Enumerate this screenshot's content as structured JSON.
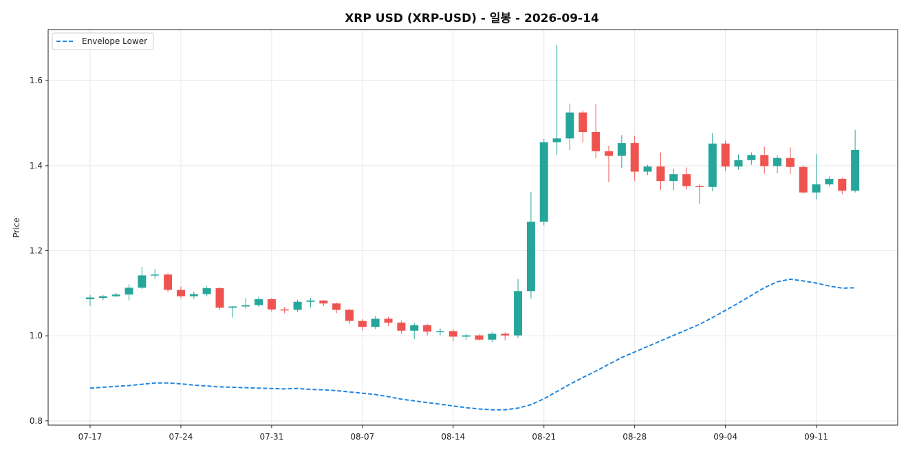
{
  "chart_data": {
    "type": "candlestick",
    "title": "XRP USD (XRP-USD) - 일봉 - 2026-09-14",
    "ylabel": "Price",
    "xlabel": "",
    "ylim": [
      0.79,
      1.72
    ],
    "yticks": [
      0.8,
      1.0,
      1.2,
      1.4,
      1.6
    ],
    "ytick_labels": [
      "0.8",
      "1.0",
      "1.2",
      "1.4",
      "1.6"
    ],
    "xtick_labels": [
      "07-17",
      "07-24",
      "07-31",
      "08-07",
      "08-14",
      "08-21",
      "08-28",
      "09-04",
      "09-11"
    ],
    "xtick_dates": [
      "2026-07-17",
      "2026-07-24",
      "2026-07-31",
      "2026-08-07",
      "2026-08-14",
      "2026-08-21",
      "2026-08-28",
      "2026-09-04",
      "2026-09-11"
    ],
    "dates": [
      "2026-07-17",
      "2026-07-18",
      "2026-07-19",
      "2026-07-20",
      "2026-07-21",
      "2026-07-22",
      "2026-07-23",
      "2026-07-24",
      "2026-07-25",
      "2026-07-26",
      "2026-07-27",
      "2026-07-28",
      "2026-07-29",
      "2026-07-30",
      "2026-07-31",
      "2026-08-01",
      "2026-08-02",
      "2026-08-03",
      "2026-08-04",
      "2026-08-05",
      "2026-08-06",
      "2026-08-07",
      "2026-08-08",
      "2026-08-09",
      "2026-08-10",
      "2026-08-11",
      "2026-08-12",
      "2026-08-13",
      "2026-08-14",
      "2026-08-15",
      "2026-08-16",
      "2026-08-17",
      "2026-08-18",
      "2026-08-19",
      "2026-08-20",
      "2026-08-21",
      "2026-08-22",
      "2026-08-23",
      "2026-08-24",
      "2026-08-25",
      "2026-08-26",
      "2026-08-27",
      "2026-08-28",
      "2026-08-29",
      "2026-08-30",
      "2026-08-31",
      "2026-09-01",
      "2026-09-02",
      "2026-09-03",
      "2026-09-04",
      "2026-09-05",
      "2026-09-06",
      "2026-09-07",
      "2026-09-08",
      "2026-09-09",
      "2026-09-10",
      "2026-09-11",
      "2026-09-12",
      "2026-09-13",
      "2026-09-14"
    ],
    "open": [
      1.086,
      1.089,
      1.093,
      1.097,
      1.113,
      1.142,
      1.144,
      1.108,
      1.093,
      1.098,
      1.112,
      1.066,
      1.069,
      1.072,
      1.086,
      1.062,
      1.061,
      1.08,
      1.083,
      1.076,
      1.061,
      1.035,
      1.021,
      1.04,
      1.031,
      1.012,
      1.025,
      1.01,
      1.011,
      0.998,
      1.001,
      0.991,
      1.005,
      1.001,
      1.105,
      1.268,
      1.455,
      1.464,
      1.525,
      1.479,
      1.434,
      1.423,
      1.453,
      1.386,
      1.398,
      1.364,
      1.38,
      1.352,
      1.35,
      1.452,
      1.398,
      1.413,
      1.425,
      1.399,
      1.418,
      1.397,
      1.337,
      1.356,
      1.369,
      1.341
    ],
    "close": [
      1.09,
      1.093,
      1.097,
      1.113,
      1.142,
      1.144,
      1.108,
      1.093,
      1.098,
      1.112,
      1.066,
      1.069,
      1.072,
      1.086,
      1.062,
      1.061,
      1.08,
      1.083,
      1.076,
      1.061,
      1.035,
      1.021,
      1.04,
      1.031,
      1.012,
      1.025,
      1.01,
      1.011,
      0.998,
      1.001,
      0.991,
      1.005,
      1.001,
      1.105,
      1.268,
      1.455,
      1.464,
      1.525,
      1.479,
      1.434,
      1.423,
      1.453,
      1.386,
      1.398,
      1.364,
      1.38,
      1.352,
      1.35,
      1.452,
      1.398,
      1.413,
      1.425,
      1.399,
      1.418,
      1.397,
      1.337,
      1.356,
      1.369,
      1.341,
      1.437
    ],
    "high": [
      1.096,
      1.096,
      1.101,
      1.121,
      1.162,
      1.157,
      1.147,
      1.116,
      1.104,
      1.116,
      1.114,
      1.07,
      1.089,
      1.092,
      1.089,
      1.068,
      1.085,
      1.089,
      1.084,
      1.078,
      1.064,
      1.039,
      1.047,
      1.045,
      1.036,
      1.03,
      1.028,
      1.017,
      1.016,
      1.005,
      1.004,
      1.009,
      1.008,
      1.133,
      1.338,
      1.463,
      1.684,
      1.546,
      1.53,
      1.545,
      1.447,
      1.472,
      1.47,
      1.402,
      1.431,
      1.393,
      1.396,
      1.357,
      1.477,
      1.459,
      1.426,
      1.431,
      1.445,
      1.424,
      1.443,
      1.4,
      1.427,
      1.375,
      1.372,
      1.484
    ],
    "low": [
      1.07,
      1.084,
      1.091,
      1.083,
      1.11,
      1.134,
      1.103,
      1.088,
      1.087,
      1.093,
      1.062,
      1.043,
      1.064,
      1.068,
      1.057,
      1.053,
      1.056,
      1.067,
      1.07,
      1.053,
      1.028,
      1.013,
      1.016,
      1.023,
      1.005,
      0.992,
      1.001,
      1.001,
      0.987,
      0.991,
      0.989,
      0.985,
      0.989,
      0.995,
      1.088,
      1.26,
      1.426,
      1.437,
      1.454,
      1.418,
      1.361,
      1.394,
      1.364,
      1.378,
      1.343,
      1.342,
      1.344,
      1.311,
      1.34,
      1.388,
      1.391,
      1.402,
      1.381,
      1.382,
      1.38,
      1.334,
      1.321,
      1.351,
      1.333,
      1.337
    ],
    "series": [
      {
        "name": "Envelope Lower",
        "color": "#1f86e0",
        "style": "dashed",
        "values": [
          0.877,
          0.879,
          0.881,
          0.883,
          0.886,
          0.889,
          0.889,
          0.887,
          0.884,
          0.882,
          0.88,
          0.879,
          0.878,
          0.877,
          0.876,
          0.875,
          0.876,
          0.874,
          0.873,
          0.871,
          0.868,
          0.865,
          0.862,
          0.857,
          0.851,
          0.847,
          0.843,
          0.839,
          0.835,
          0.831,
          0.828,
          0.826,
          0.826,
          0.83,
          0.838,
          0.852,
          0.869,
          0.886,
          0.902,
          0.917,
          0.933,
          0.949,
          0.962,
          0.975,
          0.988,
          1.001,
          1.014,
          1.027,
          1.043,
          1.06,
          1.077,
          1.095,
          1.113,
          1.127,
          1.133,
          1.129,
          1.124,
          1.117,
          1.112,
          1.113
        ]
      }
    ],
    "up_color": "#26a69a",
    "down_color": "#ef5350",
    "grid": true,
    "legend_position": "top-left"
  }
}
